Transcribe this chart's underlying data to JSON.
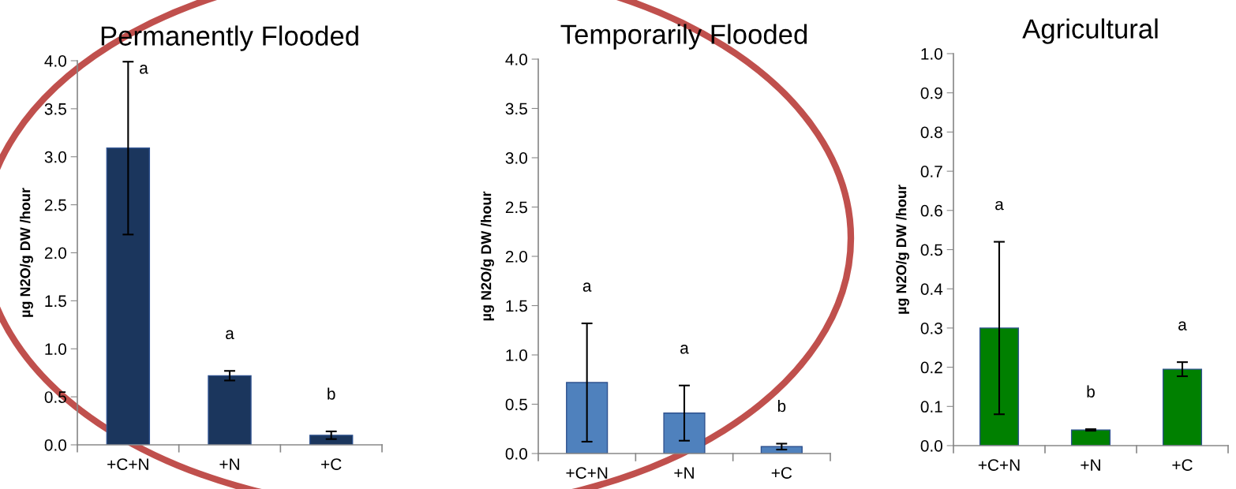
{
  "chart_data": [
    {
      "type": "bar",
      "title": "Permanently Flooded",
      "ylabel": "µg N2O/g DW /hour",
      "categories": [
        "+C+N",
        "+N",
        "+C"
      ],
      "values": [
        3.09,
        0.72,
        0.1
      ],
      "errors": [
        0.9,
        0.05,
        0.04
      ],
      "color": "#1b365d",
      "ylim": [
        0,
        4.0
      ],
      "yticks": [
        {
          "value": 0,
          "label": "0.0"
        },
        0.5,
        {
          "value": 1,
          "label": "1.0"
        },
        1.5,
        {
          "value": 2,
          "label": "2.0"
        },
        2.5,
        {
          "value": 3,
          "label": "3.0"
        },
        3.5,
        {
          "value": 4,
          "label": "4.0"
        }
      ],
      "grid": false,
      "annotations": [
        "a",
        "a",
        "b"
      ]
    },
    {
      "type": "bar",
      "title": "Temporarily Flooded",
      "ylabel": "µg N2O/g DW /hour",
      "categories": [
        "+C+N",
        "+N",
        "+C"
      ],
      "values": [
        0.72,
        0.41,
        0.07
      ],
      "errors": [
        0.6,
        0.28,
        0.03
      ],
      "color": "#4f81bd",
      "ylim": [
        0,
        4.0
      ],
      "yticks": [
        {
          "value": 0,
          "label": "0.0"
        },
        0.5,
        {
          "value": 1,
          "label": "1.0"
        },
        1.5,
        {
          "value": 2,
          "label": "2.0"
        },
        2.5,
        {
          "value": 3,
          "label": "3.0"
        },
        3.5,
        {
          "value": 4,
          "label": "4.0"
        }
      ],
      "grid": false,
      "annotations": [
        "a",
        "a",
        "b"
      ]
    },
    {
      "type": "bar",
      "title": "Agricultural",
      "ylabel": "µg N2O/g DW /hour",
      "categories": [
        "+C+N",
        "+N",
        "+C"
      ],
      "values": [
        0.3,
        0.04,
        0.195
      ],
      "errors": [
        0.22,
        0.002,
        0.018
      ],
      "color": "#008000",
      "ylim": [
        0,
        1.0
      ],
      "yticks": [
        {
          "value": 0,
          "label": "0.0"
        },
        0.1,
        0.2,
        0.3,
        0.4,
        0.5,
        0.6,
        0.7,
        0.8,
        0.9,
        {
          "value": 1,
          "label": "1.0"
        }
      ],
      "grid": false,
      "annotations": [
        "a",
        "b",
        "a"
      ]
    }
  ]
}
